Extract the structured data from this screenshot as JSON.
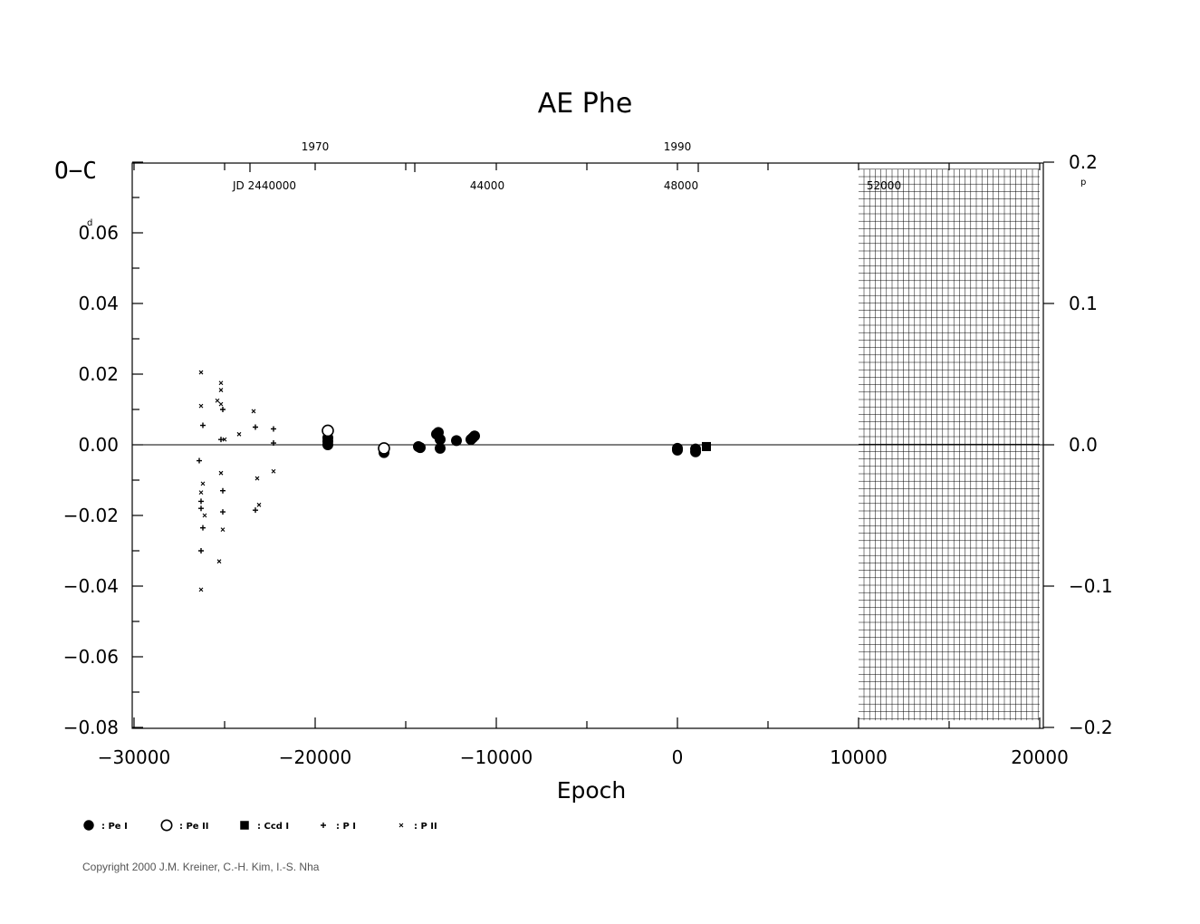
{
  "chart_data": {
    "type": "scatter",
    "title": "AE Phe",
    "xlabel": "Epoch",
    "ylabel": "O−C",
    "y_unit": "d",
    "y2_unit": "p",
    "xlim": [
      -30000,
      20000
    ],
    "ylim": [
      -0.08,
      0.08
    ],
    "y2lim": [
      -0.2,
      0.2
    ],
    "grid": false,
    "hatched_region": {
      "x": [
        10000,
        20000
      ],
      "y2": [
        -0.195,
        0.195
      ]
    },
    "x_ticks": [
      -30000,
      -20000,
      -10000,
      0,
      10000,
      20000
    ],
    "x_tick_labels": [
      "−30000",
      "−20000",
      "−10000",
      "0",
      "10000",
      "20000"
    ],
    "y_ticks": [
      -0.08,
      -0.06,
      -0.04,
      -0.02,
      0.0,
      0.02,
      0.04,
      0.06
    ],
    "y_tick_labels": [
      "−0.08",
      "−0.06",
      "−0.04",
      "−0.02",
      "0.00",
      "0.02",
      "0.04",
      "0.06"
    ],
    "y2_ticks": [
      -0.2,
      -0.1,
      0.0,
      0.1,
      0.2
    ],
    "y2_tick_labels": [
      "−0.2",
      "−0.1",
      "0.0",
      "0.1",
      "0.2"
    ],
    "year_ticks": [
      {
        "label": "1970",
        "epoch": -20000
      },
      {
        "label": "1990",
        "epoch": 0
      }
    ],
    "jd_prefix": "JD  2440000",
    "jd_ticks": [
      {
        "label": "44000",
        "epoch": -10500
      },
      {
        "label": "48000",
        "epoch": 200
      },
      {
        "label": "52000",
        "epoch": 11400
      }
    ],
    "series": [
      {
        "name": "Pe I",
        "marker": "filled-circle",
        "points": [
          [
            -19300,
            0.002
          ],
          [
            -19300,
            0.001
          ],
          [
            -19300,
            0.0
          ],
          [
            -16200,
            -0.0015
          ],
          [
            -16200,
            -0.0022
          ],
          [
            -14300,
            -0.0005
          ],
          [
            -14200,
            -0.0008
          ],
          [
            -13300,
            0.003
          ],
          [
            -13200,
            0.0035
          ],
          [
            -13100,
            0.0015
          ],
          [
            -13100,
            -0.001
          ],
          [
            -12200,
            0.0012
          ],
          [
            -11400,
            0.0015
          ],
          [
            -11300,
            0.002
          ],
          [
            -11200,
            0.0025
          ],
          [
            0,
            -0.001
          ],
          [
            0,
            -0.0015
          ],
          [
            1000,
            -0.0012
          ],
          [
            1000,
            -0.002
          ]
        ]
      },
      {
        "name": "Pe II",
        "marker": "open-circle",
        "points": [
          [
            -19300,
            0.004
          ],
          [
            -16200,
            -0.001
          ]
        ]
      },
      {
        "name": "Ccd I",
        "marker": "filled-square",
        "points": [
          [
            1600,
            -0.0005
          ]
        ]
      },
      {
        "name": "P I",
        "marker": "plus",
        "points": [
          [
            -26400,
            -0.0045
          ],
          [
            -26200,
            0.0055
          ],
          [
            -26300,
            -0.016
          ],
          [
            -26300,
            -0.018
          ],
          [
            -26200,
            -0.0235
          ],
          [
            -26300,
            -0.03
          ],
          [
            -25200,
            0.0015
          ],
          [
            -25100,
            0.01
          ],
          [
            -25100,
            -0.013
          ],
          [
            -25100,
            -0.019
          ],
          [
            -23300,
            0.005
          ],
          [
            -23300,
            -0.0185
          ],
          [
            -22300,
            0.0045
          ],
          [
            -22300,
            0.0005
          ]
        ]
      },
      {
        "name": "P II",
        "marker": "cross",
        "points": [
          [
            -26300,
            0.0205
          ],
          [
            -26300,
            0.011
          ],
          [
            -26200,
            -0.011
          ],
          [
            -26300,
            -0.0135
          ],
          [
            -26100,
            -0.02
          ],
          [
            -26300,
            -0.041
          ],
          [
            -25400,
            0.0125
          ],
          [
            -25200,
            0.0175
          ],
          [
            -25200,
            0.0155
          ],
          [
            -25200,
            0.0115
          ],
          [
            -25000,
            0.0015
          ],
          [
            -25200,
            -0.008
          ],
          [
            -25100,
            -0.024
          ],
          [
            -25300,
            -0.033
          ],
          [
            -24200,
            0.003
          ],
          [
            -23400,
            0.0095
          ],
          [
            -23200,
            -0.0095
          ],
          [
            -23100,
            -0.017
          ],
          [
            -22300,
            -0.0075
          ]
        ]
      }
    ]
  },
  "legend": [
    {
      "marker": "filled-circle",
      "label": ": Pe I"
    },
    {
      "marker": "open-circle",
      "label": ": Pe II"
    },
    {
      "marker": "filled-square",
      "label": ": Ccd I"
    },
    {
      "marker": "plus",
      "label": ": P I"
    },
    {
      "marker": "cross",
      "label": ": P II"
    }
  ],
  "copyright": "Copyright 2000 J.M. Kreiner, C.-H. Kim, I.-S. Nha"
}
